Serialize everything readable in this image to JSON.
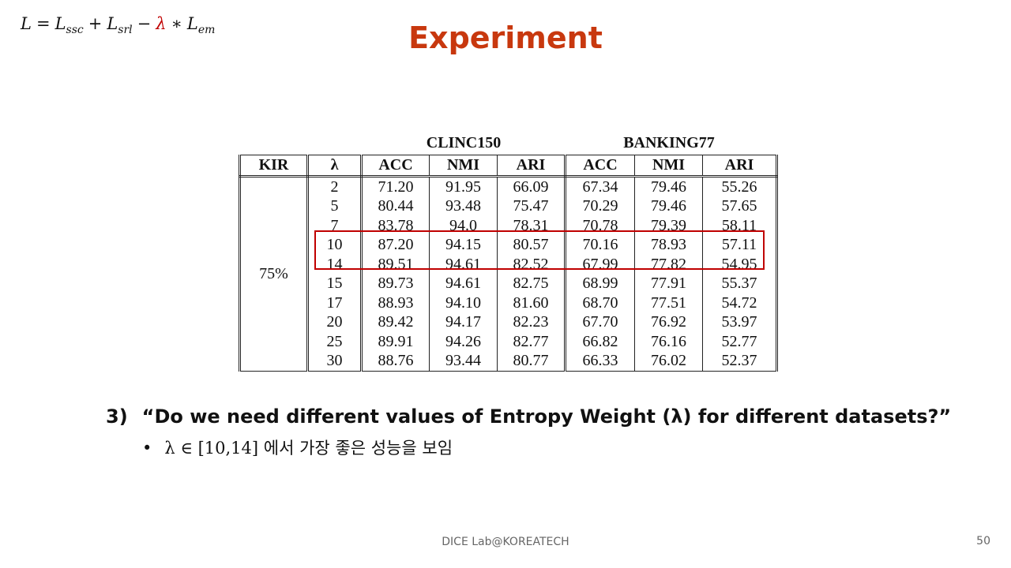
{
  "formula": {
    "lhs": "L",
    "t1": "L",
    "t1_sub": "ssc",
    "t2": "L",
    "t2_sub": "srl",
    "lambda": "λ",
    "t3": "L",
    "t3_sub": "em",
    "eq": "=",
    "plus": "+",
    "minus": "−",
    "times": "∗"
  },
  "title": "Experiment",
  "table": {
    "group_headers": [
      "CLINC150",
      "BANKING77"
    ],
    "columns": [
      "KIR",
      "λ",
      "ACC",
      "NMI",
      "ARI",
      "ACC",
      "NMI",
      "ARI"
    ],
    "kir": "75%",
    "rows": [
      [
        "2",
        "71.20",
        "91.95",
        "66.09",
        "67.34",
        "79.46",
        "55.26"
      ],
      [
        "5",
        "80.44",
        "93.48",
        "75.47",
        "70.29",
        "79.46",
        "57.65"
      ],
      [
        "7",
        "83.78",
        "94.0",
        "78.31",
        "70.78",
        "79.39",
        "58.11"
      ],
      [
        "10",
        "87.20",
        "94.15",
        "80.57",
        "70.16",
        "78.93",
        "57.11"
      ],
      [
        "14",
        "89.51",
        "94.61",
        "82.52",
        "67.99",
        "77.82",
        "54.95"
      ],
      [
        "15",
        "89.73",
        "94.61",
        "82.75",
        "68.99",
        "77.91",
        "55.37"
      ],
      [
        "17",
        "88.93",
        "94.10",
        "81.60",
        "68.70",
        "77.51",
        "54.72"
      ],
      [
        "20",
        "89.42",
        "94.17",
        "82.23",
        "67.70",
        "76.92",
        "53.97"
      ],
      [
        "25",
        "89.91",
        "94.26",
        "82.77",
        "66.82",
        "76.16",
        "52.77"
      ],
      [
        "30",
        "88.76",
        "93.44",
        "80.77",
        "66.33",
        "76.02",
        "52.37"
      ]
    ],
    "highlight_color": "#c00000"
  },
  "question": {
    "number": "3)",
    "text": "“Do we need different values of Entropy Weight (λ) for different datasets?”"
  },
  "bullet": {
    "marker": "•",
    "math": "λ ∈ [10,14]",
    "text": "에서 가장 좋은 성능을 보임"
  },
  "footer": "DICE Lab@KOREATECH",
  "page_number": "50",
  "colors": {
    "title": "#c8380e",
    "lambda": "#c00000"
  }
}
